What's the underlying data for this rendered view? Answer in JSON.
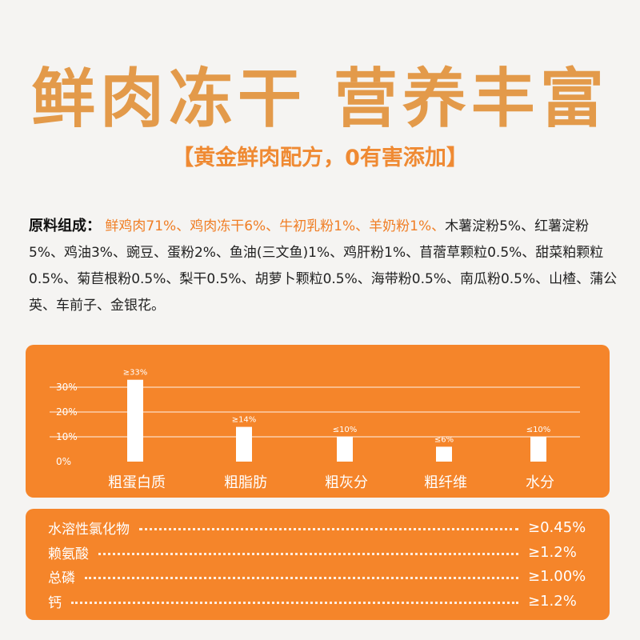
{
  "header": {
    "title": "鲜肉冻干 营养丰富",
    "subtitle": "【黄金鲜肉配方，0有害添加】"
  },
  "ingredients": {
    "label": "原料组成：",
    "highlighted": "鲜鸡肉71%、鸡肉冻干6%、牛初乳粉1%、羊奶粉1%、",
    "rest": "木薯淀粉5%、红薯淀粉5%、鸡油3%、豌豆、蛋粉2%、鱼油(三文鱼)1%、鸡肝粉1%、苜蓿草颗粒0.5%、甜菜粕颗粒0.5%、菊苣根粉0.5%、梨干0.5%、胡萝卜颗粒0.5%、海带粉0.5%、南瓜粉0.5%、山楂、蒲公英、车前子、金银花。"
  },
  "chart_data": {
    "type": "bar",
    "categories": [
      "粗蛋白质",
      "粗脂肪",
      "粗灰分",
      "粗纤维",
      "水分"
    ],
    "values": [
      33,
      14,
      10,
      6,
      10
    ],
    "data_labels": [
      "≥33%",
      "≥14%",
      "≤10%",
      "≤6%",
      "≤10%"
    ],
    "y_ticks": [
      "0%",
      "10%",
      "20%",
      "30%"
    ],
    "ylim": [
      0,
      40
    ],
    "grid": true,
    "colors": {
      "bar": "#ffffff",
      "background": "#f5852a",
      "grid": "#ffffff"
    }
  },
  "nutrients": [
    {
      "name": "水溶性氯化物",
      "value": "≥0.45%"
    },
    {
      "name": "赖氨酸",
      "value": "≥1.2%"
    },
    {
      "name": "总磷",
      "value": "≥1.00%"
    },
    {
      "name": "钙",
      "value": "≥1.2%"
    }
  ],
  "colors": {
    "title": "#e39a4a",
    "subtitle": "#ef8a33",
    "accent": "#f5852a",
    "highlight_text": "#f07e25"
  }
}
